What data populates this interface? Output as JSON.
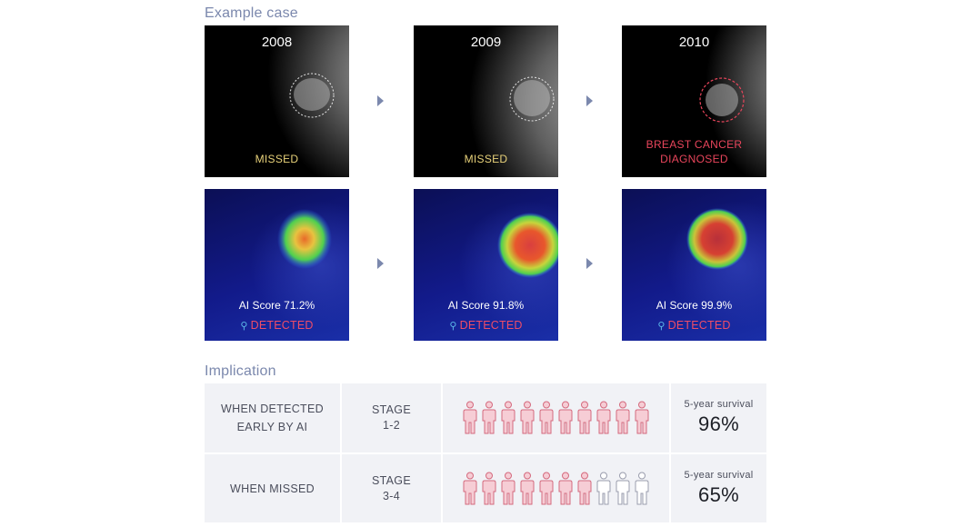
{
  "example": {
    "title": "Example case",
    "mammograms": [
      {
        "year": "2008",
        "status_lines": [
          "MISSED"
        ],
        "status": "missed"
      },
      {
        "year": "2009",
        "status_lines": [
          "MISSED"
        ],
        "status": "missed"
      },
      {
        "year": "2010",
        "status_lines": [
          "BREAST CANCER",
          "DIAGNOSED"
        ],
        "status": "cancer"
      }
    ],
    "heatmaps": [
      {
        "score": "AI Score 71.2%",
        "detected": "DETECTED"
      },
      {
        "score": "AI Score 91.8%",
        "detected": "DETECTED"
      },
      {
        "score": "AI Score 99.9%",
        "detected": "DETECTED"
      }
    ]
  },
  "implication": {
    "title": "Implication",
    "rows": [
      {
        "condition_lines": [
          "WHEN DETECTED",
          "EARLY BY AI"
        ],
        "stage_lines": [
          "STAGE",
          "1-2"
        ],
        "filled_people": 10,
        "total_people": 10,
        "survival_label": "5-year survival",
        "survival_value": "96%"
      },
      {
        "condition_lines": [
          "WHEN MISSED"
        ],
        "stage_lines": [
          "STAGE",
          "3-4"
        ],
        "filled_people": 7,
        "total_people": 10,
        "survival_label": "5-year survival",
        "survival_value": "65%"
      }
    ]
  },
  "colors": {
    "accent": "#7b88ad",
    "missed": "#e8d27a",
    "cancer": "#e8455b",
    "detected": "#ee4d67",
    "person_fill": "#f6cdd5",
    "person_stroke": "#d46a7e",
    "person_empty_stroke": "#9a9dad"
  }
}
